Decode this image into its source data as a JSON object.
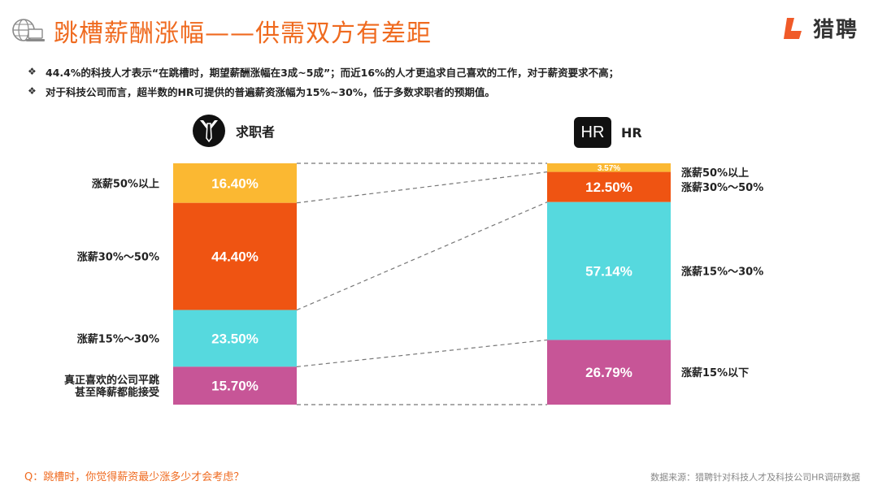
{
  "title": "跳槽薪酬涨幅——供需双方有差距",
  "logo": {
    "text": "猎聘",
    "icon": "liepin-logo-icon",
    "color": "#f05a28"
  },
  "bullets": [
    "44.4%的科技人才表示“在跳槽时，期望薪酬涨幅在3成~5成”；而近16%的人才更追求自己喜欢的工作，对于薪资要求不高；",
    "对于科技公司而言，超半数的HR可提供的普遍薪资涨幅为15%~30%，低于多数求职者的预期值。"
  ],
  "bullet_symbol": "❖",
  "groups": {
    "seekers": {
      "label": "求职者",
      "icon": "suit-tie-icon"
    },
    "hr": {
      "label": "HR",
      "icon_text": "HR",
      "icon": "hr-badge-icon"
    }
  },
  "chart_data": {
    "type": "stacked-bar-comparison",
    "unit": "%",
    "series": [
      {
        "name": "求职者",
        "segments": [
          {
            "label": "涨薪50%以上",
            "value": 16.4,
            "display": "16.40%",
            "color": "#fbb832"
          },
          {
            "label": "涨薪30%～50%",
            "value": 44.4,
            "display": "44.40%",
            "color": "#ef5412"
          },
          {
            "label": "涨薪15%～30%",
            "value": 23.5,
            "display": "23.50%",
            "color": "#56d9de"
          },
          {
            "label": "真正喜欢的公司平跳\n甚至降薪都能接受",
            "value": 15.7,
            "display": "15.70%",
            "color": "#c75597"
          }
        ]
      },
      {
        "name": "HR",
        "segments": [
          {
            "label": "涨薪50%以上",
            "value": 3.57,
            "display": "3.57%",
            "color": "#fbb832"
          },
          {
            "label": "涨薪30%～50%",
            "value": 12.5,
            "display": "12.50%",
            "color": "#ef5412"
          },
          {
            "label": "涨薪15%～30%",
            "value": 57.14,
            "display": "57.14%",
            "color": "#56d9de"
          },
          {
            "label": "涨薪15%以下",
            "value": 26.79,
            "display": "26.79%",
            "color": "#c75597"
          }
        ]
      }
    ]
  },
  "footer": {
    "question": "Q：跳槽时，你觉得薪资最少涨多少才会考虑？",
    "source": "数据来源：猎聘针对科技人才及科技公司HR调研数据"
  }
}
